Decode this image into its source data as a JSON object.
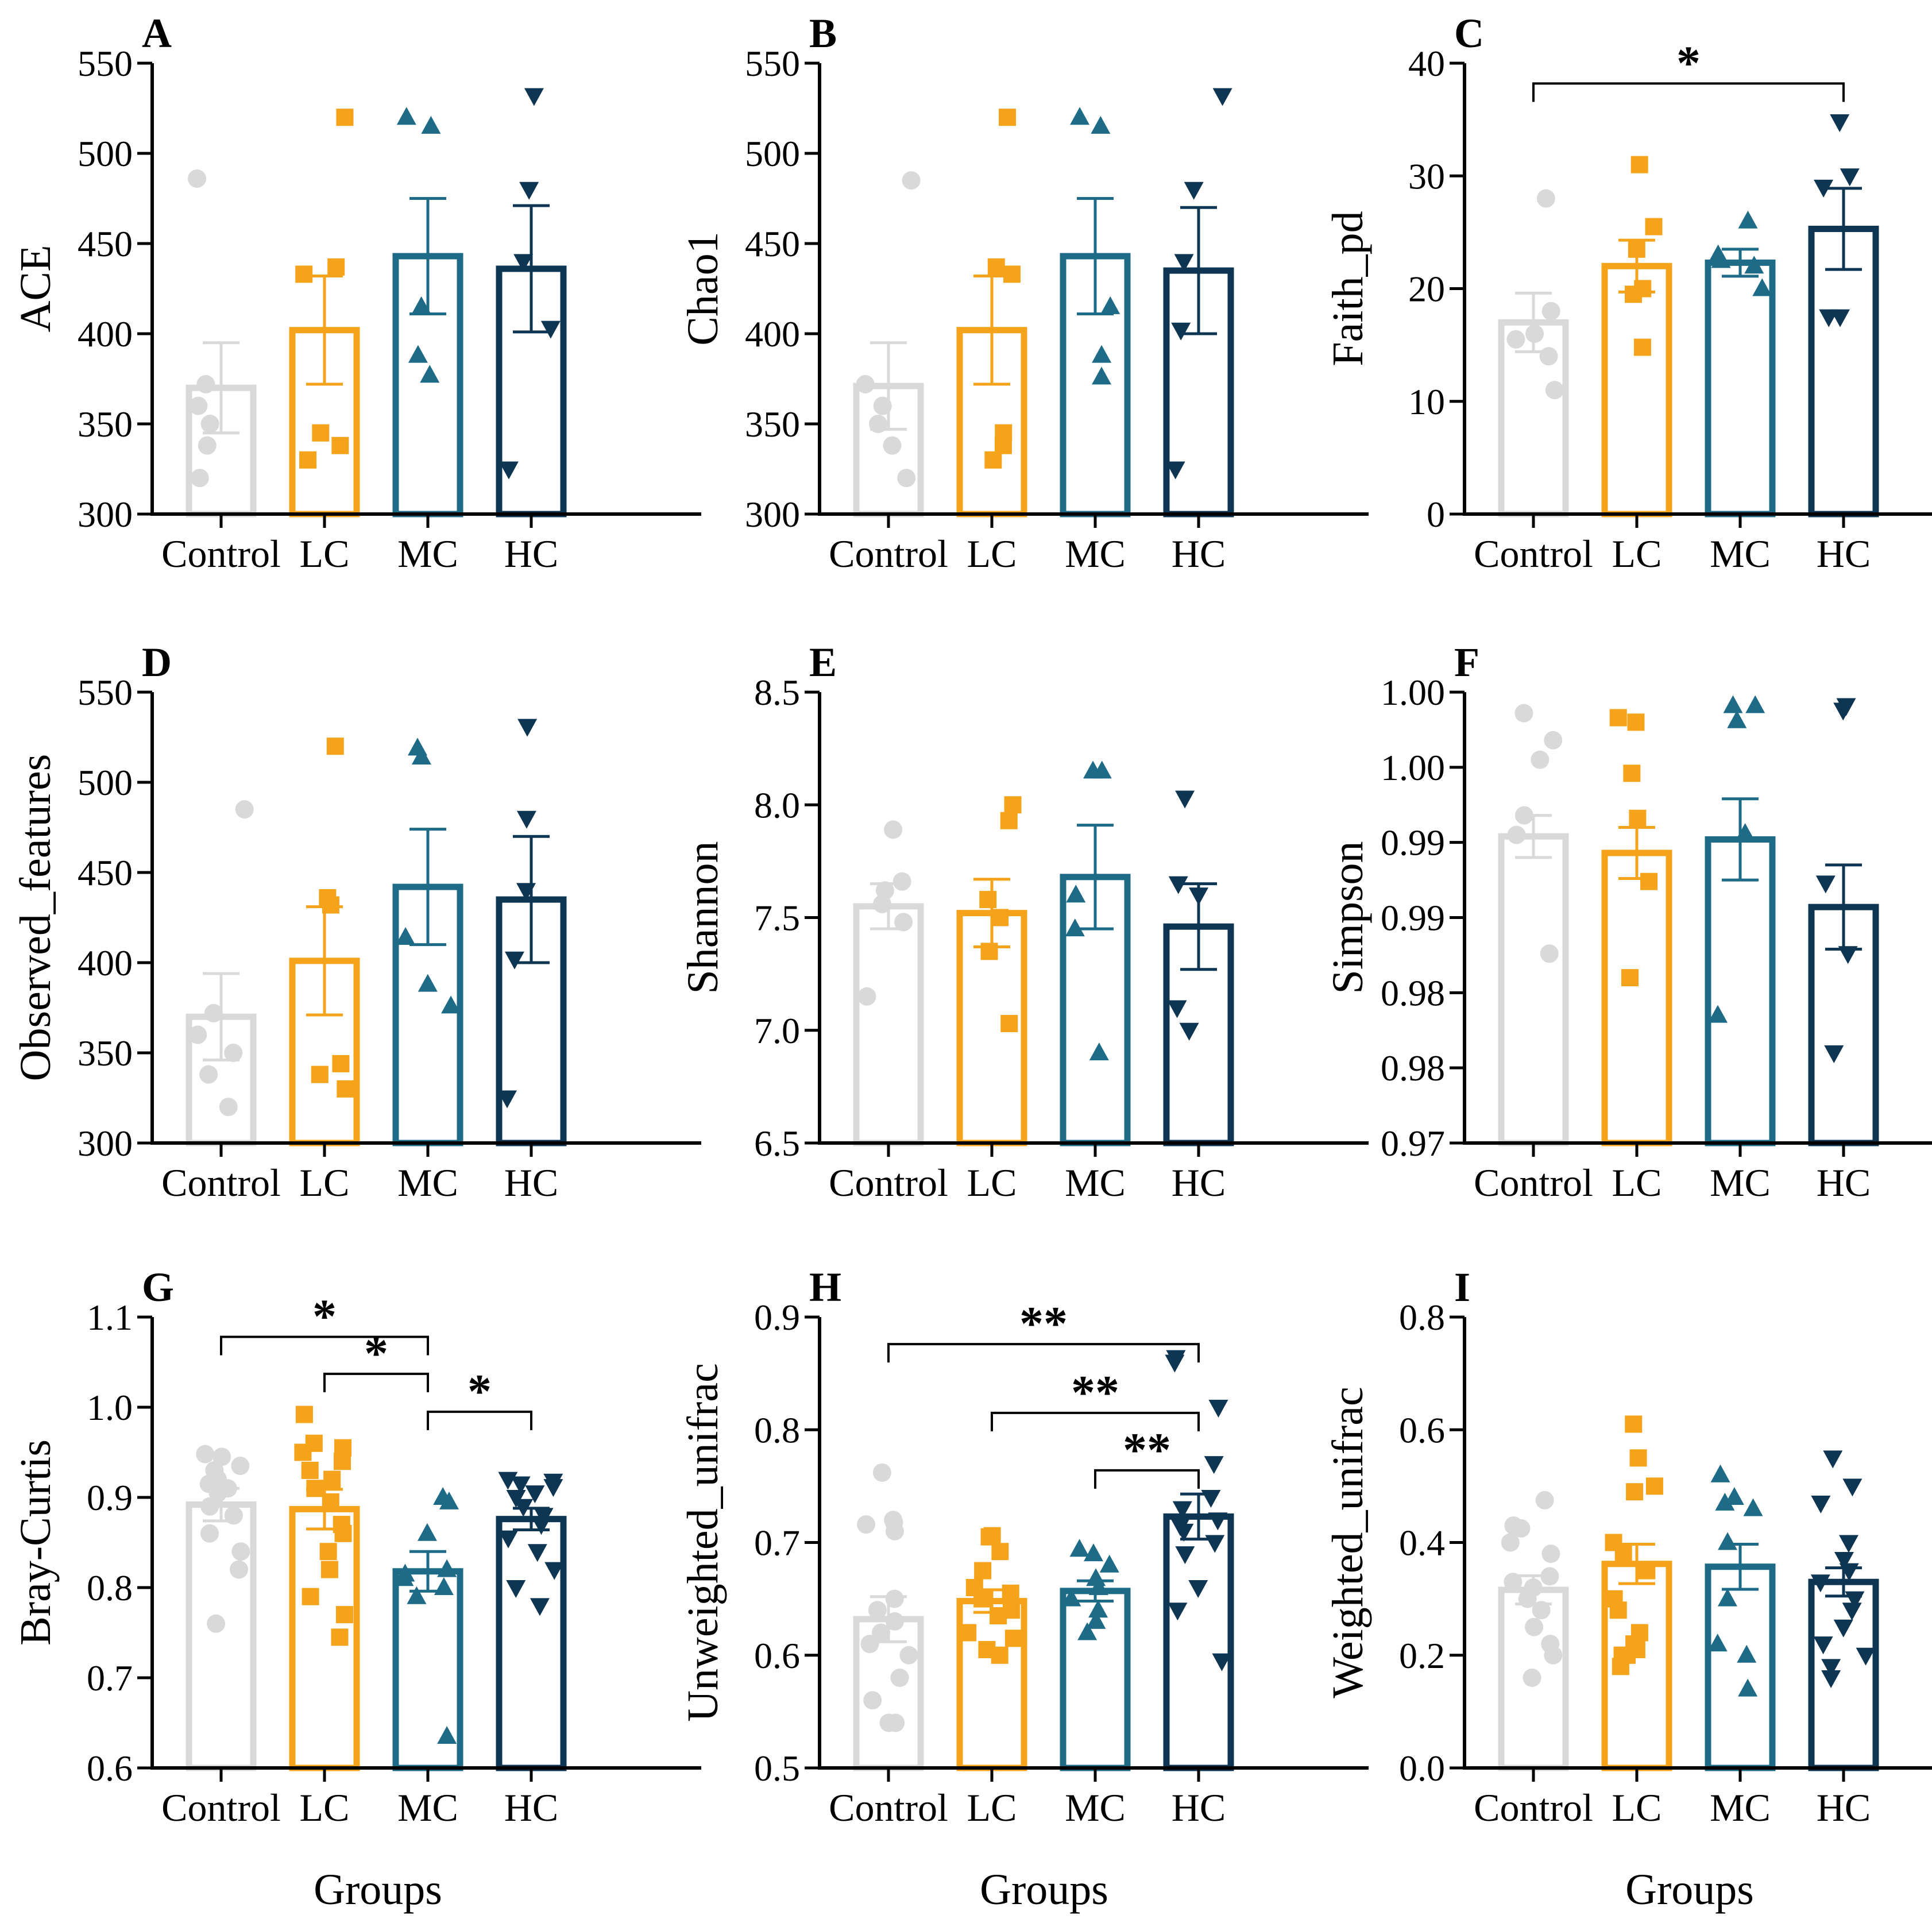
{
  "colors": {
    "Control": "#d9d9d9",
    "LC": "#f5a31a",
    "MC": "#1d6b86",
    "HC": "#0e3552",
    "axis": "#000000"
  },
  "xlabel": "Groups",
  "chart_data": [
    {
      "panel": "A",
      "type": "bar",
      "ylabel": "ACE",
      "categories": [
        "Control",
        "LC",
        "MC",
        "HC"
      ],
      "ylim": [
        300,
        550
      ],
      "yticks": [
        300,
        350,
        400,
        450,
        500,
        550
      ],
      "ytick_labels": [
        "300",
        "350",
        "400",
        "450",
        "500",
        "550"
      ],
      "means": [
        370,
        402,
        443,
        436
      ],
      "errors": [
        25,
        30,
        32,
        35
      ],
      "points": [
        [
          486,
          372,
          360,
          350,
          338,
          320
        ],
        [
          520,
          437,
          433,
          345,
          338,
          330
        ],
        [
          520,
          515,
          415,
          388,
          377
        ],
        [
          532,
          480,
          440,
          403,
          325
        ]
      ],
      "significance": []
    },
    {
      "panel": "B",
      "type": "bar",
      "ylabel": "Chao1",
      "categories": [
        "Control",
        "LC",
        "MC",
        "HC"
      ],
      "ylim": [
        300,
        550
      ],
      "yticks": [
        300,
        350,
        400,
        450,
        500,
        550
      ],
      "ytick_labels": [
        "300",
        "350",
        "400",
        "450",
        "500",
        "550"
      ],
      "means": [
        371,
        402,
        443,
        435
      ],
      "errors": [
        24,
        30,
        32,
        35
      ],
      "points": [
        [
          485,
          372,
          360,
          350,
          338,
          320
        ],
        [
          520,
          437,
          433,
          345,
          338,
          330
        ],
        [
          520,
          515,
          415,
          388,
          376
        ],
        [
          532,
          480,
          440,
          402,
          325
        ]
      ],
      "significance": []
    },
    {
      "panel": "C",
      "type": "bar",
      "ylabel": "Faith_pd",
      "categories": [
        "Control",
        "LC",
        "MC",
        "HC"
      ],
      "ylim": [
        0,
        40
      ],
      "yticks": [
        0,
        10,
        20,
        30,
        40
      ],
      "ytick_labels": [
        "0",
        "10",
        "20",
        "30",
        "40"
      ],
      "means": [
        17,
        22,
        22.3,
        25.3
      ],
      "errors": [
        2.6,
        2.3,
        1.2,
        3.6
      ],
      "points": [
        [
          28,
          18,
          16,
          15.5,
          14,
          11
        ],
        [
          31,
          25.5,
          23.5,
          20,
          19.5,
          14.8
        ],
        [
          26,
          23,
          22.5,
          22,
          20
        ],
        [
          34.8,
          30,
          29,
          17.5,
          17.5
        ]
      ],
      "significance": [
        {
          "from": 0,
          "to": 3,
          "label": "*",
          "y": 38.2
        }
      ]
    },
    {
      "panel": "D",
      "type": "bar",
      "ylabel": "Observed_features",
      "categories": [
        "Control",
        "LC",
        "MC",
        "HC"
      ],
      "ylim": [
        300,
        550
      ],
      "yticks": [
        300,
        350,
        400,
        450,
        500,
        550
      ],
      "ytick_labels": [
        "300",
        "350",
        "400",
        "450",
        "500",
        "550"
      ],
      "means": [
        370,
        401,
        442,
        435
      ],
      "errors": [
        24,
        30,
        32,
        35
      ],
      "points": [
        [
          485,
          372,
          360,
          350,
          338,
          320
        ],
        [
          520,
          436,
          432,
          344,
          338,
          330
        ],
        [
          519,
          514,
          414,
          388,
          376
        ],
        [
          531,
          480,
          440,
          402,
          325
        ]
      ],
      "significance": []
    },
    {
      "panel": "E",
      "type": "bar",
      "ylabel": "Shannon",
      "categories": [
        "Control",
        "LC",
        "MC",
        "HC"
      ],
      "ylim": [
        6.5,
        8.5
      ],
      "yticks": [
        6.5,
        7.0,
        7.5,
        8.0,
        8.5
      ],
      "ytick_labels": [
        "6.5",
        "7.0",
        "7.5",
        "8.0",
        "8.5"
      ],
      "means": [
        7.55,
        7.52,
        7.68,
        7.46
      ],
      "errors": [
        0.1,
        0.15,
        0.23,
        0.19
      ],
      "points": [
        [
          7.89,
          7.66,
          7.62,
          7.56,
          7.48,
          7.15
        ],
        [
          8.0,
          7.93,
          7.58,
          7.5,
          7.35,
          7.03
        ],
        [
          8.15,
          8.15,
          7.6,
          7.45,
          6.9
        ],
        [
          8.03,
          7.65,
          7.6,
          7.1,
          7.0
        ]
      ],
      "significance": []
    },
    {
      "panel": "F",
      "type": "bar",
      "ylabel": "Simpson",
      "categories": [
        "Control",
        "LC",
        "MC",
        "HC"
      ],
      "ylim": [
        0.97,
        1.0
      ],
      "yticks": [
        0.97,
        0.975,
        0.98,
        0.985,
        0.99,
        0.995,
        1.0
      ],
      "ytick_labels": [
        "0.97",
        "0.98",
        "0.98",
        "0.99",
        "0.99",
        "1.00",
        "1.00"
      ],
      "means": [
        0.9904,
        0.9893,
        0.9902,
        0.9857
      ],
      "errors": [
        0.0014,
        0.0017,
        0.0027,
        0.0028
      ],
      "points": [
        [
          0.9986,
          0.9968,
          0.9955,
          0.9918,
          0.9905,
          0.9826
        ],
        [
          0.9983,
          0.998,
          0.9946,
          0.9916,
          0.9874,
          0.981
        ],
        [
          0.9991,
          0.9991,
          0.9981,
          0.9906,
          0.9785
        ],
        [
          0.9991,
          0.9988,
          0.9873,
          0.9826,
          0.976
        ]
      ],
      "significance": []
    },
    {
      "panel": "G",
      "type": "bar",
      "ylabel": "Bray-Curtis",
      "categories": [
        "Control",
        "LC",
        "MC",
        "HC"
      ],
      "ylim": [
        0.6,
        1.1
      ],
      "yticks": [
        0.6,
        0.7,
        0.8,
        0.9,
        1.0,
        1.1
      ],
      "ytick_labels": [
        "0.6",
        "0.7",
        "0.8",
        "0.9",
        "1.0",
        "1.1"
      ],
      "means": [
        0.892,
        0.887,
        0.818,
        0.876
      ],
      "errors": [
        0.018,
        0.022,
        0.022,
        0.012
      ],
      "points": [
        [
          0.948,
          0.945,
          0.935,
          0.93,
          0.92,
          0.915,
          0.91,
          0.905,
          0.89,
          0.88,
          0.86,
          0.84,
          0.82,
          0.76
        ],
        [
          0.992,
          0.96,
          0.955,
          0.95,
          0.94,
          0.93,
          0.92,
          0.91,
          0.895,
          0.87,
          0.86,
          0.84,
          0.82,
          0.79,
          0.77,
          0.745
        ],
        [
          0.9,
          0.895,
          0.86,
          0.82,
          0.815,
          0.81,
          0.8,
          0.79,
          0.635
        ],
        [
          0.92,
          0.918,
          0.915,
          0.912,
          0.905,
          0.9,
          0.89,
          0.88,
          0.87,
          0.855,
          0.84,
          0.82,
          0.8,
          0.78
        ]
      ],
      "significance": [
        {
          "from": 0,
          "to": 2,
          "label": "*",
          "y": 1.078
        },
        {
          "from": 1,
          "to": 2,
          "label": "*",
          "y": 1.037
        },
        {
          "from": 2,
          "to": 3,
          "label": "*",
          "y": 0.995
        }
      ]
    },
    {
      "panel": "H",
      "type": "bar",
      "ylabel": "Unweighted_unifrac",
      "categories": [
        "Control",
        "LC",
        "MC",
        "HC"
      ],
      "ylim": [
        0.5,
        0.9
      ],
      "yticks": [
        0.5,
        0.6,
        0.7,
        0.8,
        0.9
      ],
      "ytick_labels": [
        "0.5",
        "0.6",
        "0.7",
        "0.8",
        "0.9"
      ],
      "means": [
        0.632,
        0.648,
        0.657,
        0.723
      ],
      "errors": [
        0.02,
        0.01,
        0.009,
        0.02
      ],
      "points": [
        [
          0.762,
          0.72,
          0.718,
          0.716,
          0.71,
          0.65,
          0.64,
          0.63,
          0.62,
          0.61,
          0.6,
          0.58,
          0.56,
          0.54,
          0.54
        ],
        [
          0.706,
          0.705,
          0.692,
          0.675,
          0.66,
          0.655,
          0.65,
          0.64,
          0.635,
          0.62,
          0.615,
          0.605,
          0.6
        ],
        [
          0.694,
          0.69,
          0.68,
          0.668,
          0.66,
          0.65,
          0.64,
          0.63,
          0.62
        ],
        [
          0.864,
          0.86,
          0.82,
          0.77,
          0.74,
          0.73,
          0.72,
          0.715,
          0.71,
          0.7,
          0.69,
          0.66,
          0.64,
          0.595
        ]
      ],
      "significance": [
        {
          "from": 0,
          "to": 3,
          "label": "**",
          "y": 0.876
        },
        {
          "from": 1,
          "to": 3,
          "label": "**",
          "y": 0.815
        },
        {
          "from": 2,
          "to": 3,
          "label": "**",
          "y": 0.764
        }
      ]
    },
    {
      "panel": "I",
      "type": "bar",
      "ylabel": "Weighted_unifrac",
      "categories": [
        "Control",
        "LC",
        "MC",
        "HC"
      ],
      "ylim": [
        0.0,
        0.8
      ],
      "yticks": [
        0.0,
        0.2,
        0.4,
        0.6,
        0.8
      ],
      "ytick_labels": [
        "0.0",
        "0.2",
        "0.4",
        "0.6",
        "0.8"
      ],
      "means": [
        0.316,
        0.362,
        0.357,
        0.33
      ],
      "errors": [
        0.025,
        0.035,
        0.04,
        0.025
      ],
      "points": [
        [
          0.475,
          0.43,
          0.425,
          0.4,
          0.38,
          0.34,
          0.33,
          0.32,
          0.3,
          0.28,
          0.25,
          0.22,
          0.2,
          0.16
        ],
        [
          0.61,
          0.55,
          0.5,
          0.49,
          0.4,
          0.38,
          0.35,
          0.3,
          0.28,
          0.24,
          0.22,
          0.21,
          0.2,
          0.2,
          0.18
        ],
        [
          0.52,
          0.48,
          0.47,
          0.46,
          0.4,
          0.3,
          0.22,
          0.2,
          0.14
        ],
        [
          0.55,
          0.5,
          0.47,
          0.4,
          0.37,
          0.35,
          0.33,
          0.3,
          0.28,
          0.25,
          0.22,
          0.2,
          0.18,
          0.16
        ]
      ],
      "significance": []
    }
  ]
}
